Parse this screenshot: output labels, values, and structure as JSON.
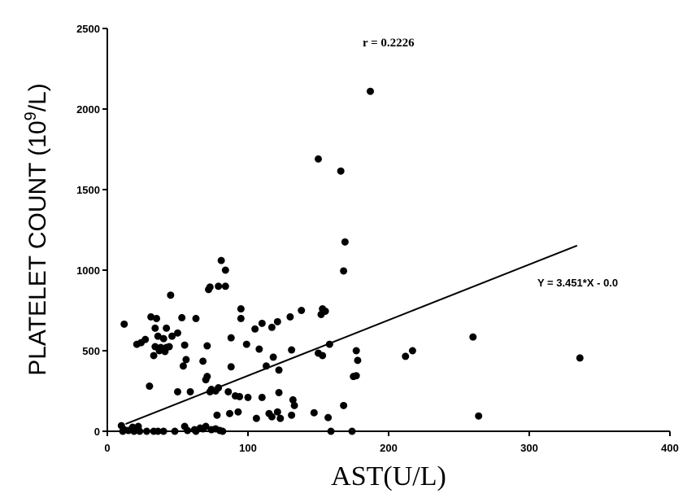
{
  "chart_data": {
    "type": "scatter",
    "xlabel": "AST(U/L)",
    "ylabel_main": "PLATELET COUNT  (10",
    "ylabel_sup": "9",
    "ylabel_tail": "/L)",
    "xlim": [
      0,
      400
    ],
    "ylim": [
      0,
      2500
    ],
    "x_ticks": [
      "0",
      "100",
      "200",
      "300",
      "400"
    ],
    "y_ticks": [
      "0",
      "500",
      "1000",
      "1500",
      "2000",
      "2500"
    ],
    "annotation_r": "r = 0.2226",
    "annotation_equation": "Y = 3.451*X - 0.0",
    "regression": {
      "slope": 3.451,
      "intercept": 0.0,
      "x_range": [
        13,
        334
      ]
    },
    "points": [
      {
        "x": 12,
        "y": 665
      },
      {
        "x": 27,
        "y": 570
      },
      {
        "x": 31,
        "y": 710
      },
      {
        "x": 35,
        "y": 700
      },
      {
        "x": 42,
        "y": 640
      },
      {
        "x": 34,
        "y": 640
      },
      {
        "x": 50,
        "y": 610
      },
      {
        "x": 46,
        "y": 590
      },
      {
        "x": 36,
        "y": 590
      },
      {
        "x": 40,
        "y": 575
      },
      {
        "x": 21,
        "y": 540
      },
      {
        "x": 24,
        "y": 550
      },
      {
        "x": 34,
        "y": 525
      },
      {
        "x": 38,
        "y": 520
      },
      {
        "x": 42,
        "y": 520
      },
      {
        "x": 44,
        "y": 525
      },
      {
        "x": 37,
        "y": 500
      },
      {
        "x": 41,
        "y": 495
      },
      {
        "x": 33,
        "y": 470
      },
      {
        "x": 45,
        "y": 845
      },
      {
        "x": 53,
        "y": 705
      },
      {
        "x": 63,
        "y": 700
      },
      {
        "x": 55,
        "y": 535
      },
      {
        "x": 56,
        "y": 445
      },
      {
        "x": 54,
        "y": 405
      },
      {
        "x": 68,
        "y": 435
      },
      {
        "x": 71,
        "y": 530
      },
      {
        "x": 30,
        "y": 280
      },
      {
        "x": 50,
        "y": 245
      },
      {
        "x": 59,
        "y": 245
      },
      {
        "x": 70,
        "y": 320
      },
      {
        "x": 71,
        "y": 340
      },
      {
        "x": 72,
        "y": 880
      },
      {
        "x": 73,
        "y": 895
      },
      {
        "x": 79,
        "y": 900
      },
      {
        "x": 84,
        "y": 900
      },
      {
        "x": 81,
        "y": 1060
      },
      {
        "x": 84,
        "y": 1000
      },
      {
        "x": 95,
        "y": 760
      },
      {
        "x": 95,
        "y": 700
      },
      {
        "x": 88,
        "y": 580
      },
      {
        "x": 99,
        "y": 540
      },
      {
        "x": 88,
        "y": 400
      },
      {
        "x": 74,
        "y": 260
      },
      {
        "x": 77,
        "y": 250
      },
      {
        "x": 79,
        "y": 270
      },
      {
        "x": 73,
        "y": 245
      },
      {
        "x": 86,
        "y": 245
      },
      {
        "x": 91,
        "y": 220
      },
      {
        "x": 94,
        "y": 215
      },
      {
        "x": 100,
        "y": 210
      },
      {
        "x": 78,
        "y": 100
      },
      {
        "x": 87,
        "y": 110
      },
      {
        "x": 93,
        "y": 120
      },
      {
        "x": 105,
        "y": 635
      },
      {
        "x": 110,
        "y": 670
      },
      {
        "x": 117,
        "y": 645
      },
      {
        "x": 121,
        "y": 680
      },
      {
        "x": 108,
        "y": 510
      },
      {
        "x": 118,
        "y": 460
      },
      {
        "x": 113,
        "y": 405
      },
      {
        "x": 122,
        "y": 380
      },
      {
        "x": 130,
        "y": 710
      },
      {
        "x": 138,
        "y": 750
      },
      {
        "x": 131,
        "y": 505
      },
      {
        "x": 110,
        "y": 210
      },
      {
        "x": 122,
        "y": 240
      },
      {
        "x": 132,
        "y": 195
      },
      {
        "x": 133,
        "y": 160
      },
      {
        "x": 106,
        "y": 80
      },
      {
        "x": 115,
        "y": 110
      },
      {
        "x": 121,
        "y": 120
      },
      {
        "x": 123,
        "y": 80
      },
      {
        "x": 131,
        "y": 100
      },
      {
        "x": 117,
        "y": 90
      },
      {
        "x": 150,
        "y": 1690
      },
      {
        "x": 166,
        "y": 1615
      },
      {
        "x": 187,
        "y": 2110
      },
      {
        "x": 169,
        "y": 1175
      },
      {
        "x": 168,
        "y": 995
      },
      {
        "x": 153,
        "y": 760
      },
      {
        "x": 155,
        "y": 745
      },
      {
        "x": 152,
        "y": 725
      },
      {
        "x": 158,
        "y": 540
      },
      {
        "x": 150,
        "y": 485
      },
      {
        "x": 153,
        "y": 470
      },
      {
        "x": 177,
        "y": 500
      },
      {
        "x": 178,
        "y": 440
      },
      {
        "x": 175,
        "y": 340
      },
      {
        "x": 177,
        "y": 345
      },
      {
        "x": 147,
        "y": 115
      },
      {
        "x": 157,
        "y": 85
      },
      {
        "x": 168,
        "y": 160
      },
      {
        "x": 212,
        "y": 465
      },
      {
        "x": 217,
        "y": 500
      },
      {
        "x": 260,
        "y": 585
      },
      {
        "x": 264,
        "y": 95
      },
      {
        "x": 336,
        "y": 455
      },
      {
        "x": 10,
        "y": 35
      },
      {
        "x": 12,
        "y": 10
      },
      {
        "x": 15,
        "y": 5
      },
      {
        "x": 18,
        "y": 25
      },
      {
        "x": 20,
        "y": 10
      },
      {
        "x": 22,
        "y": 30
      },
      {
        "x": 19,
        "y": 0
      },
      {
        "x": 23,
        "y": 0
      },
      {
        "x": 28,
        "y": 0
      },
      {
        "x": 33,
        "y": 0
      },
      {
        "x": 36,
        "y": 0
      },
      {
        "x": 40,
        "y": 0
      },
      {
        "x": 48,
        "y": 0
      },
      {
        "x": 55,
        "y": 30
      },
      {
        "x": 57,
        "y": 5
      },
      {
        "x": 62,
        "y": 10
      },
      {
        "x": 66,
        "y": 20
      },
      {
        "x": 68,
        "y": 15
      },
      {
        "x": 70,
        "y": 30
      },
      {
        "x": 74,
        "y": 10
      },
      {
        "x": 77,
        "y": 15
      },
      {
        "x": 80,
        "y": 5
      },
      {
        "x": 82,
        "y": 0
      },
      {
        "x": 159,
        "y": 0
      },
      {
        "x": 174,
        "y": 0
      },
      {
        "x": 63,
        "y": 0
      },
      {
        "x": 11,
        "y": 0
      }
    ]
  },
  "colors": {
    "ink": "#000000",
    "background": "#ffffff"
  }
}
